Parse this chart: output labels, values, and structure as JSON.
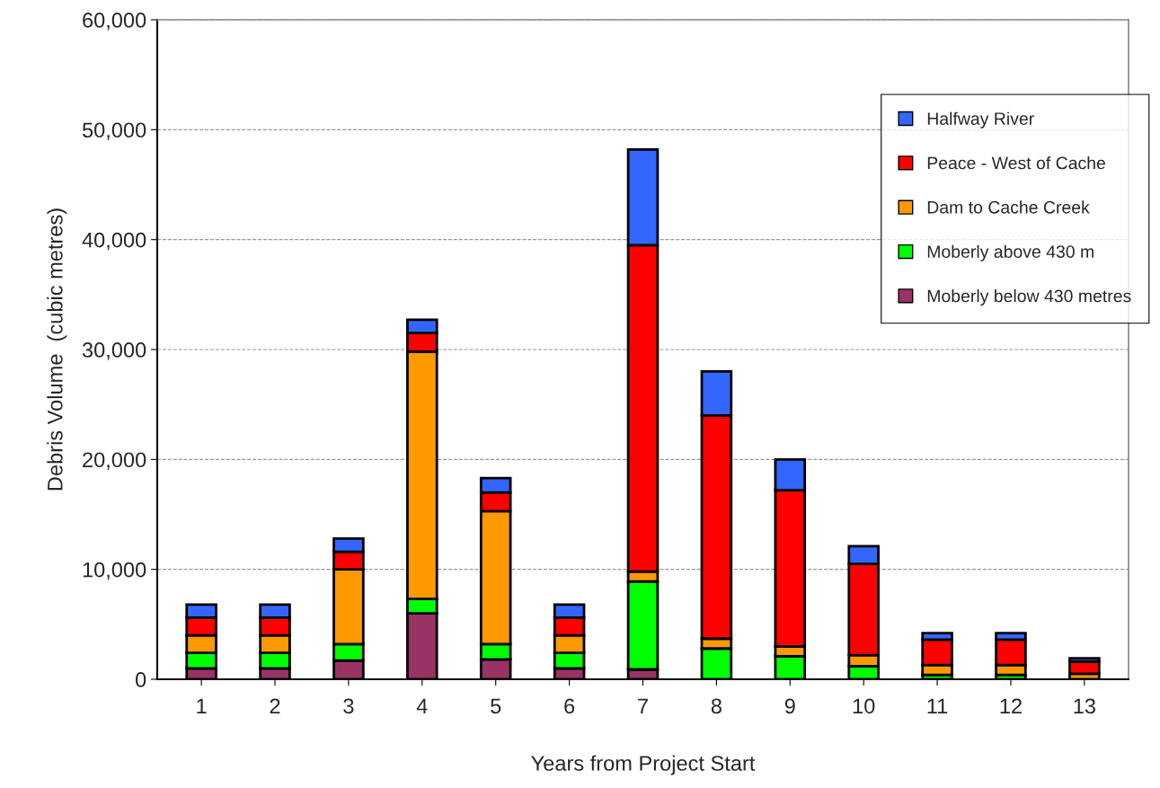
{
  "chart_data": {
    "type": "bar",
    "stacked": true,
    "xlabel": "Years from Project Start",
    "ylabel": "Debris Volume  (cubic metres)",
    "categories": [
      "1",
      "2",
      "3",
      "4",
      "5",
      "6",
      "7",
      "8",
      "9",
      "10",
      "11",
      "12",
      "13"
    ],
    "series": [
      {
        "name": "Moberly below 430 metres",
        "color": "#993366",
        "values": [
          1000,
          1000,
          1700,
          6000,
          1800,
          1000,
          900,
          0,
          0,
          0,
          0,
          0,
          0
        ]
      },
      {
        "name": "Moberly above 430 m",
        "color": "#00ff00",
        "values": [
          1400,
          1400,
          1500,
          1300,
          1400,
          1400,
          8000,
          2800,
          2100,
          1200,
          400,
          400,
          null
        ]
      },
      {
        "name": "Dam to Cache Creek",
        "color": "#ff9900",
        "values": [
          1600,
          1600,
          6800,
          22500,
          12100,
          1600,
          900,
          900,
          900,
          1000,
          900,
          900,
          500
        ]
      },
      {
        "name": "Peace - West of Cache",
        "color": "#ff0000",
        "values": [
          1600,
          1600,
          1600,
          1700,
          1700,
          1600,
          29700,
          20300,
          14200,
          8300,
          2300,
          2300,
          1100
        ]
      },
      {
        "name": "Halfway River",
        "color": "#3366ff",
        "values": [
          1200,
          1200,
          1200,
          1200,
          1300,
          1200,
          8700,
          4000,
          2800,
          1600,
          600,
          600,
          300
        ]
      }
    ],
    "ylim": [
      0,
      60000
    ],
    "yticks": [
      {
        "value": 0,
        "label": "0"
      },
      {
        "value": 10000,
        "label": "10,000"
      },
      {
        "value": 20000,
        "label": "20,000"
      },
      {
        "value": 30000,
        "label": "30,000"
      },
      {
        "value": 40000,
        "label": "40,000"
      },
      {
        "value": 50000,
        "label": "50,000"
      },
      {
        "value": 60000,
        "label": "60,000"
      }
    ],
    "grid": "y",
    "legend": "top right"
  }
}
